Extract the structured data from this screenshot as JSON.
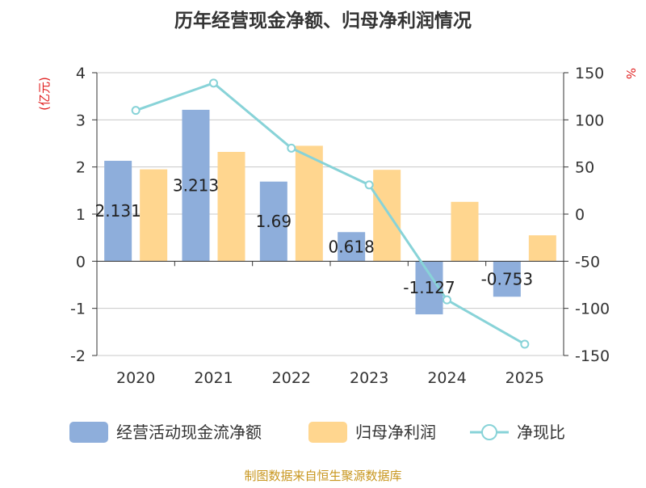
{
  "chart_data": {
    "type": "bar",
    "title": "历年经营现金净额、归母净利润情况",
    "categories": [
      "2020",
      "2021",
      "2022",
      "2023",
      "2024",
      "2025"
    ],
    "left_axis": {
      "unit_label": "(亿元)",
      "ylim": [
        -2,
        4
      ],
      "ticks": [
        -2,
        -1,
        0,
        1,
        2,
        3,
        4
      ]
    },
    "right_axis": {
      "unit_label": "%",
      "ylim": [
        -150,
        150
      ],
      "ticks": [
        -150,
        -100,
        -50,
        0,
        50,
        100,
        150
      ]
    },
    "series": [
      {
        "name": "经营活动现金流净额",
        "type": "bar",
        "axis": "left",
        "color": "#8eaedb",
        "values": [
          2.131,
          3.213,
          1.69,
          0.618,
          -1.127,
          -0.753
        ],
        "labels": [
          "2.131",
          "3.213",
          "1.69",
          "0.618",
          "-1.127",
          "-0.753"
        ]
      },
      {
        "name": "归母净利润",
        "type": "bar",
        "axis": "left",
        "color": "#ffd68f",
        "values": [
          1.95,
          2.32,
          2.45,
          1.94,
          1.26,
          0.55
        ]
      },
      {
        "name": "净现比",
        "type": "line",
        "axis": "right",
        "color": "#88d3d8",
        "values": [
          110,
          139,
          70,
          31,
          -91,
          -138
        ]
      }
    ],
    "grid": true,
    "legend_position": "bottom"
  },
  "source_note": "制图数据来自恒生聚源数据库"
}
